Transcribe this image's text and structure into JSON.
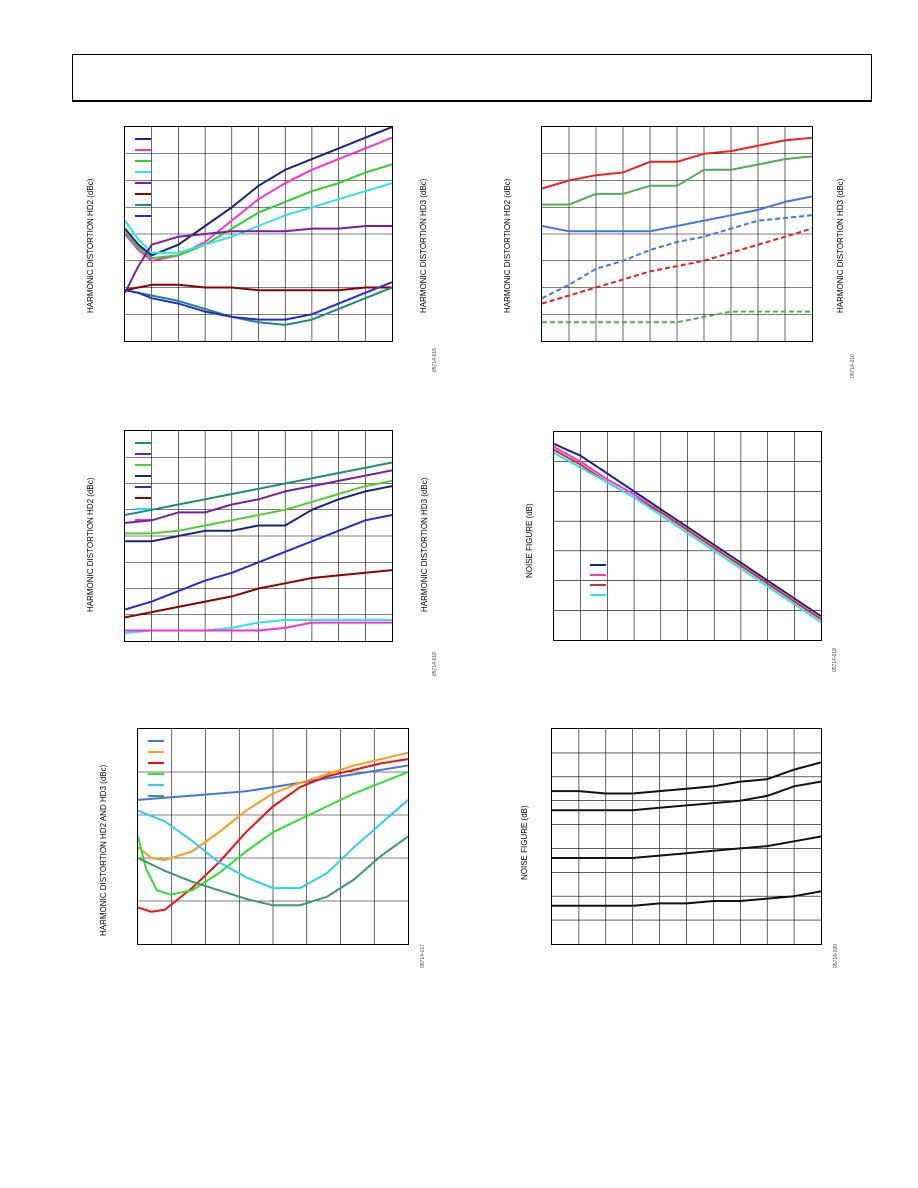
{
  "page": {
    "header_text": ""
  },
  "chart_data": [
    {
      "type": "line",
      "title": "",
      "ylabel_left": "HARMONIC DISTORTION HD2 (dBc)",
      "ylabel_right": "HARMONIC DISTORTION HD3 (dBc)",
      "figure_code": "05714-015",
      "grid": true,
      "legend_position": "top-left",
      "xlim": [
        0,
        10
      ],
      "ylim": [
        0,
        8
      ],
      "series": [
        {
          "color": "#1a237e",
          "x": [
            0,
            0.5,
            1,
            2,
            3,
            4,
            5,
            6,
            7,
            8,
            9,
            10
          ],
          "y": [
            4.2,
            3.6,
            3.2,
            3.6,
            4.3,
            5.0,
            5.8,
            6.4,
            6.8,
            7.2,
            7.6,
            8.0
          ]
        },
        {
          "color": "#ff33cc",
          "x": [
            0,
            0.5,
            1,
            2,
            3,
            4,
            5,
            6,
            7,
            8,
            9,
            10
          ],
          "y": [
            4.0,
            3.4,
            3.0,
            3.2,
            3.7,
            4.5,
            5.3,
            5.9,
            6.4,
            6.8,
            7.2,
            7.6
          ]
        },
        {
          "color": "#33cc33",
          "x": [
            0,
            0.5,
            1,
            2,
            3,
            4,
            5,
            6,
            7,
            8,
            9,
            10
          ],
          "y": [
            4.1,
            3.5,
            3.1,
            3.2,
            3.6,
            4.2,
            4.8,
            5.2,
            5.6,
            5.9,
            6.3,
            6.6
          ]
        },
        {
          "color": "#33e0ee",
          "x": [
            0,
            0.5,
            1,
            2,
            3,
            4,
            5,
            6,
            7,
            8,
            9,
            10
          ],
          "y": [
            4.5,
            3.8,
            3.3,
            3.3,
            3.6,
            3.9,
            4.3,
            4.7,
            5.0,
            5.3,
            5.6,
            5.9
          ]
        },
        {
          "color": "#7b1fa2",
          "x": [
            0,
            0.5,
            1,
            2,
            3,
            4,
            5,
            6,
            7,
            8,
            9,
            10
          ],
          "y": [
            1.8,
            2.8,
            3.6,
            3.9,
            4.0,
            4.1,
            4.1,
            4.1,
            4.2,
            4.2,
            4.3,
            4.3
          ]
        },
        {
          "color": "#8b0000",
          "x": [
            0,
            0.5,
            1,
            2,
            3,
            4,
            5,
            6,
            7,
            8,
            9,
            10
          ],
          "y": [
            1.9,
            2.0,
            2.1,
            2.1,
            2.0,
            2.0,
            1.9,
            1.9,
            1.9,
            1.9,
            2.0,
            2.0
          ]
        },
        {
          "color": "#1e8a7a",
          "x": [
            0,
            0.5,
            1,
            2,
            3,
            4,
            5,
            6,
            7,
            8,
            9,
            10
          ],
          "y": [
            1.9,
            1.8,
            1.7,
            1.5,
            1.2,
            0.9,
            0.7,
            0.6,
            0.8,
            1.2,
            1.6,
            2.0
          ]
        },
        {
          "color": "#2a2ad0",
          "x": [
            0,
            0.5,
            1,
            2,
            3,
            4,
            5,
            6,
            7,
            8,
            9,
            10
          ],
          "y": [
            1.9,
            1.8,
            1.6,
            1.4,
            1.1,
            0.9,
            0.8,
            0.8,
            1.0,
            1.4,
            1.8,
            2.2
          ]
        }
      ]
    },
    {
      "type": "line",
      "title": "",
      "ylabel_left": "HARMONIC DISTORTION HD2 (dBc)",
      "ylabel_right": "HARMONIC DISTORTION HD3 (dBc)",
      "figure_code": "05714-016",
      "grid": true,
      "legend_position": "none",
      "xlim": [
        0,
        10
      ],
      "ylim": [
        0,
        8
      ],
      "series": [
        {
          "color": "#ee2222",
          "x": [
            0,
            1,
            2,
            3,
            4,
            5,
            6,
            7,
            8,
            9,
            10
          ],
          "y": [
            5.7,
            6.0,
            6.2,
            6.3,
            6.7,
            6.7,
            7.0,
            7.1,
            7.3,
            7.5,
            7.6
          ]
        },
        {
          "color": "#55aa55",
          "x": [
            0,
            1,
            2,
            3,
            4,
            5,
            6,
            7,
            8,
            9,
            10
          ],
          "y": [
            5.1,
            5.1,
            5.5,
            5.5,
            5.8,
            5.8,
            6.4,
            6.4,
            6.6,
            6.8,
            6.9
          ]
        },
        {
          "color": "#4477dd",
          "x": [
            0,
            1,
            2,
            3,
            4,
            5,
            6,
            7,
            8,
            9,
            10
          ],
          "y": [
            4.3,
            4.1,
            4.1,
            4.1,
            4.1,
            4.3,
            4.5,
            4.7,
            4.9,
            5.2,
            5.4
          ]
        },
        {
          "color": "#4477dd",
          "dashed": true,
          "x": [
            0,
            1,
            2,
            3,
            4,
            5,
            6,
            7,
            8,
            9,
            10
          ],
          "y": [
            1.6,
            2.1,
            2.7,
            3.0,
            3.4,
            3.7,
            3.9,
            4.2,
            4.5,
            4.6,
            4.7
          ]
        },
        {
          "color": "#dd2222",
          "dashed": true,
          "x": [
            0,
            1,
            2,
            3,
            4,
            5,
            6,
            7,
            8,
            9,
            10
          ],
          "y": [
            1.4,
            1.7,
            2.0,
            2.3,
            2.6,
            2.8,
            3.0,
            3.3,
            3.6,
            3.9,
            4.2
          ]
        },
        {
          "color": "#55aa55",
          "dashed": true,
          "x": [
            0,
            1,
            2,
            3,
            4,
            5,
            6,
            7,
            8,
            9,
            10
          ],
          "y": [
            0.7,
            0.7,
            0.7,
            0.7,
            0.7,
            0.7,
            0.9,
            1.1,
            1.1,
            1.1,
            1.1
          ]
        }
      ]
    },
    {
      "type": "line",
      "title": "",
      "ylabel_left": "HARMONIC DISTORTION HD2 (dBc)",
      "ylabel_right": "HARMONIC DISTORTION HD3 (dBc)",
      "figure_code": "05714-018",
      "grid": true,
      "legend_position": "top-left",
      "xlim": [
        0,
        10
      ],
      "ylim": [
        0,
        8
      ],
      "series": [
        {
          "color": "#1e8a7a",
          "x": [
            0,
            1,
            2,
            3,
            4,
            5,
            6,
            7,
            8,
            9,
            10
          ],
          "y": [
            4.8,
            5.0,
            5.2,
            5.4,
            5.6,
            5.8,
            6.0,
            6.2,
            6.4,
            6.6,
            6.8
          ]
        },
        {
          "color": "#7b1fa2",
          "x": [
            0,
            1,
            2,
            3,
            4,
            5,
            6,
            7,
            8,
            9,
            10
          ],
          "y": [
            4.5,
            4.6,
            4.9,
            4.9,
            5.2,
            5.4,
            5.7,
            5.9,
            6.1,
            6.3,
            6.5
          ]
        },
        {
          "color": "#55cc33",
          "x": [
            0,
            1,
            2,
            3,
            4,
            5,
            6,
            7,
            8,
            9,
            10
          ],
          "y": [
            4.1,
            4.1,
            4.2,
            4.4,
            4.6,
            4.8,
            5.0,
            5.3,
            5.6,
            5.9,
            6.1
          ]
        },
        {
          "color": "#1a237e",
          "x": [
            0,
            1,
            2,
            3,
            4,
            5,
            6,
            7,
            8,
            9,
            10
          ],
          "y": [
            3.8,
            3.8,
            4.0,
            4.2,
            4.2,
            4.4,
            4.4,
            5.0,
            5.4,
            5.7,
            5.9
          ]
        },
        {
          "color": "#2a2ad0",
          "x": [
            0,
            1,
            2,
            3,
            4,
            5,
            6,
            7,
            8,
            9,
            10
          ],
          "y": [
            1.2,
            1.5,
            1.9,
            2.3,
            2.6,
            3.0,
            3.4,
            3.8,
            4.2,
            4.6,
            4.8
          ]
        },
        {
          "color": "#8b0000",
          "x": [
            0,
            1,
            2,
            3,
            4,
            5,
            6,
            7,
            8,
            9,
            10
          ],
          "y": [
            0.9,
            1.1,
            1.3,
            1.5,
            1.7,
            2.0,
            2.2,
            2.4,
            2.5,
            2.6,
            2.7
          ]
        },
        {
          "color": "#33e0ee",
          "x": [
            0,
            1,
            2,
            3,
            4,
            5,
            6,
            7,
            8,
            9,
            10
          ],
          "y": [
            0.3,
            0.4,
            0.4,
            0.4,
            0.5,
            0.7,
            0.8,
            0.8,
            0.8,
            0.8,
            0.8
          ]
        },
        {
          "color": "#ff33cc",
          "x": [
            0,
            1,
            2,
            3,
            4,
            5,
            6,
            7,
            8,
            9,
            10
          ],
          "y": [
            0.4,
            0.4,
            0.4,
            0.4,
            0.4,
            0.4,
            0.5,
            0.7,
            0.7,
            0.7,
            0.7
          ]
        }
      ]
    },
    {
      "type": "line",
      "title": "",
      "ylabel": "NOISE FIGURE (dB)",
      "figure_code": "05714-019",
      "grid": true,
      "legend_position": "bottom-left",
      "xlim": [
        0,
        10
      ],
      "ylim": [
        0,
        7
      ],
      "series": [
        {
          "color": "#1a237e",
          "x": [
            0,
            1,
            2,
            3,
            4,
            5,
            6,
            7,
            8,
            9,
            10
          ],
          "y": [
            6.6,
            6.2,
            5.6,
            5.0,
            4.4,
            3.8,
            3.2,
            2.6,
            2.0,
            1.4,
            0.8
          ]
        },
        {
          "color": "#ff33cc",
          "x": [
            0,
            1,
            2,
            3,
            4,
            5,
            6,
            7,
            8,
            9,
            10
          ],
          "y": [
            6.5,
            6.0,
            5.4,
            4.9,
            4.3,
            3.7,
            3.1,
            2.5,
            1.9,
            1.3,
            0.7
          ]
        },
        {
          "color": "#cc3333",
          "x": [
            0,
            1,
            2,
            3,
            4,
            5,
            6,
            7,
            8,
            9,
            10
          ],
          "y": [
            6.4,
            5.9,
            5.3,
            4.8,
            4.3,
            3.7,
            3.1,
            2.5,
            1.9,
            1.3,
            0.7
          ]
        },
        {
          "color": "#33e0ee",
          "x": [
            0,
            1,
            2,
            3,
            4,
            5,
            6,
            7,
            8,
            9,
            10
          ],
          "y": [
            6.3,
            5.8,
            5.3,
            4.8,
            4.2,
            3.6,
            3.0,
            2.4,
            1.8,
            1.2,
            0.6
          ]
        }
      ]
    },
    {
      "type": "line",
      "title": "",
      "ylabel": "HARMONIC DISTORTION HD2 AND HD3 (dBc)",
      "figure_code": "05714-017",
      "grid": true,
      "legend_position": "top-left",
      "xlim": [
        0,
        10
      ],
      "ylim": [
        0,
        10
      ],
      "series": [
        {
          "color": "#4477dd",
          "x": [
            0,
            1,
            2,
            3,
            4,
            5,
            6,
            7,
            8,
            9,
            10
          ],
          "y": [
            6.7,
            6.8,
            6.9,
            7.0,
            7.1,
            7.3,
            7.5,
            7.7,
            7.9,
            8.1,
            8.3
          ]
        },
        {
          "color": "#f5a020",
          "x": [
            0,
            0.5,
            1,
            2,
            3,
            4,
            5,
            6,
            7,
            8,
            9,
            10
          ],
          "y": [
            4.5,
            4.0,
            3.9,
            4.3,
            5.2,
            6.2,
            7.0,
            7.5,
            7.9,
            8.3,
            8.6,
            8.9
          ]
        },
        {
          "color": "#ee1111",
          "x": [
            0,
            0.5,
            1,
            2,
            3,
            4,
            5,
            6,
            7,
            8,
            9,
            10
          ],
          "y": [
            1.7,
            1.5,
            1.6,
            2.6,
            3.8,
            5.2,
            6.4,
            7.3,
            7.8,
            8.1,
            8.4,
            8.6
          ]
        },
        {
          "color": "#33dd33",
          "x": [
            0,
            0.3,
            0.7,
            1.2,
            2,
            3,
            4,
            5,
            6,
            7,
            8,
            9,
            10
          ],
          "y": [
            5.0,
            3.5,
            2.5,
            2.3,
            2.5,
            3.3,
            4.3,
            5.2,
            5.8,
            6.4,
            7.0,
            7.5,
            8.0
          ]
        },
        {
          "color": "#33ccee",
          "x": [
            0,
            1,
            2,
            3,
            4,
            5,
            6,
            7,
            8,
            9,
            10
          ],
          "y": [
            6.2,
            5.7,
            4.8,
            3.8,
            3.1,
            2.6,
            2.6,
            3.3,
            4.5,
            5.6,
            6.7
          ]
        },
        {
          "color": "#3a9a6a",
          "x": [
            0,
            1,
            2,
            3,
            4,
            5,
            6,
            7,
            8,
            9,
            10
          ],
          "y": [
            4.0,
            3.4,
            2.9,
            2.5,
            2.1,
            1.8,
            1.8,
            2.2,
            3.0,
            4.1,
            5.0
          ]
        }
      ]
    },
    {
      "type": "line",
      "title": "",
      "ylabel": "NOISE FIGURE (dB)",
      "figure_code": "05714-020",
      "grid": true,
      "legend_position": "none",
      "xlim": [
        0,
        10
      ],
      "ylim": [
        0,
        9
      ],
      "series": [
        {
          "color": "#111111",
          "x": [
            0,
            1,
            2,
            3,
            4,
            5,
            6,
            7,
            8,
            9,
            10
          ],
          "y": [
            6.4,
            6.4,
            6.3,
            6.3,
            6.4,
            6.5,
            6.6,
            6.8,
            6.9,
            7.3,
            7.6
          ]
        },
        {
          "color": "#111111",
          "x": [
            0,
            1,
            2,
            3,
            4,
            5,
            6,
            7,
            8,
            9,
            10
          ],
          "y": [
            5.6,
            5.6,
            5.6,
            5.6,
            5.7,
            5.8,
            5.9,
            6.0,
            6.2,
            6.6,
            6.8
          ]
        },
        {
          "color": "#111111",
          "x": [
            0,
            1,
            2,
            3,
            4,
            5,
            6,
            7,
            8,
            9,
            10
          ],
          "y": [
            3.6,
            3.6,
            3.6,
            3.6,
            3.7,
            3.8,
            3.9,
            4.0,
            4.1,
            4.3,
            4.5
          ]
        },
        {
          "color": "#111111",
          "x": [
            0,
            1,
            2,
            3,
            4,
            5,
            6,
            7,
            8,
            9,
            10
          ],
          "y": [
            1.6,
            1.6,
            1.6,
            1.6,
            1.7,
            1.7,
            1.8,
            1.8,
            1.9,
            2.0,
            2.2
          ]
        }
      ]
    }
  ]
}
